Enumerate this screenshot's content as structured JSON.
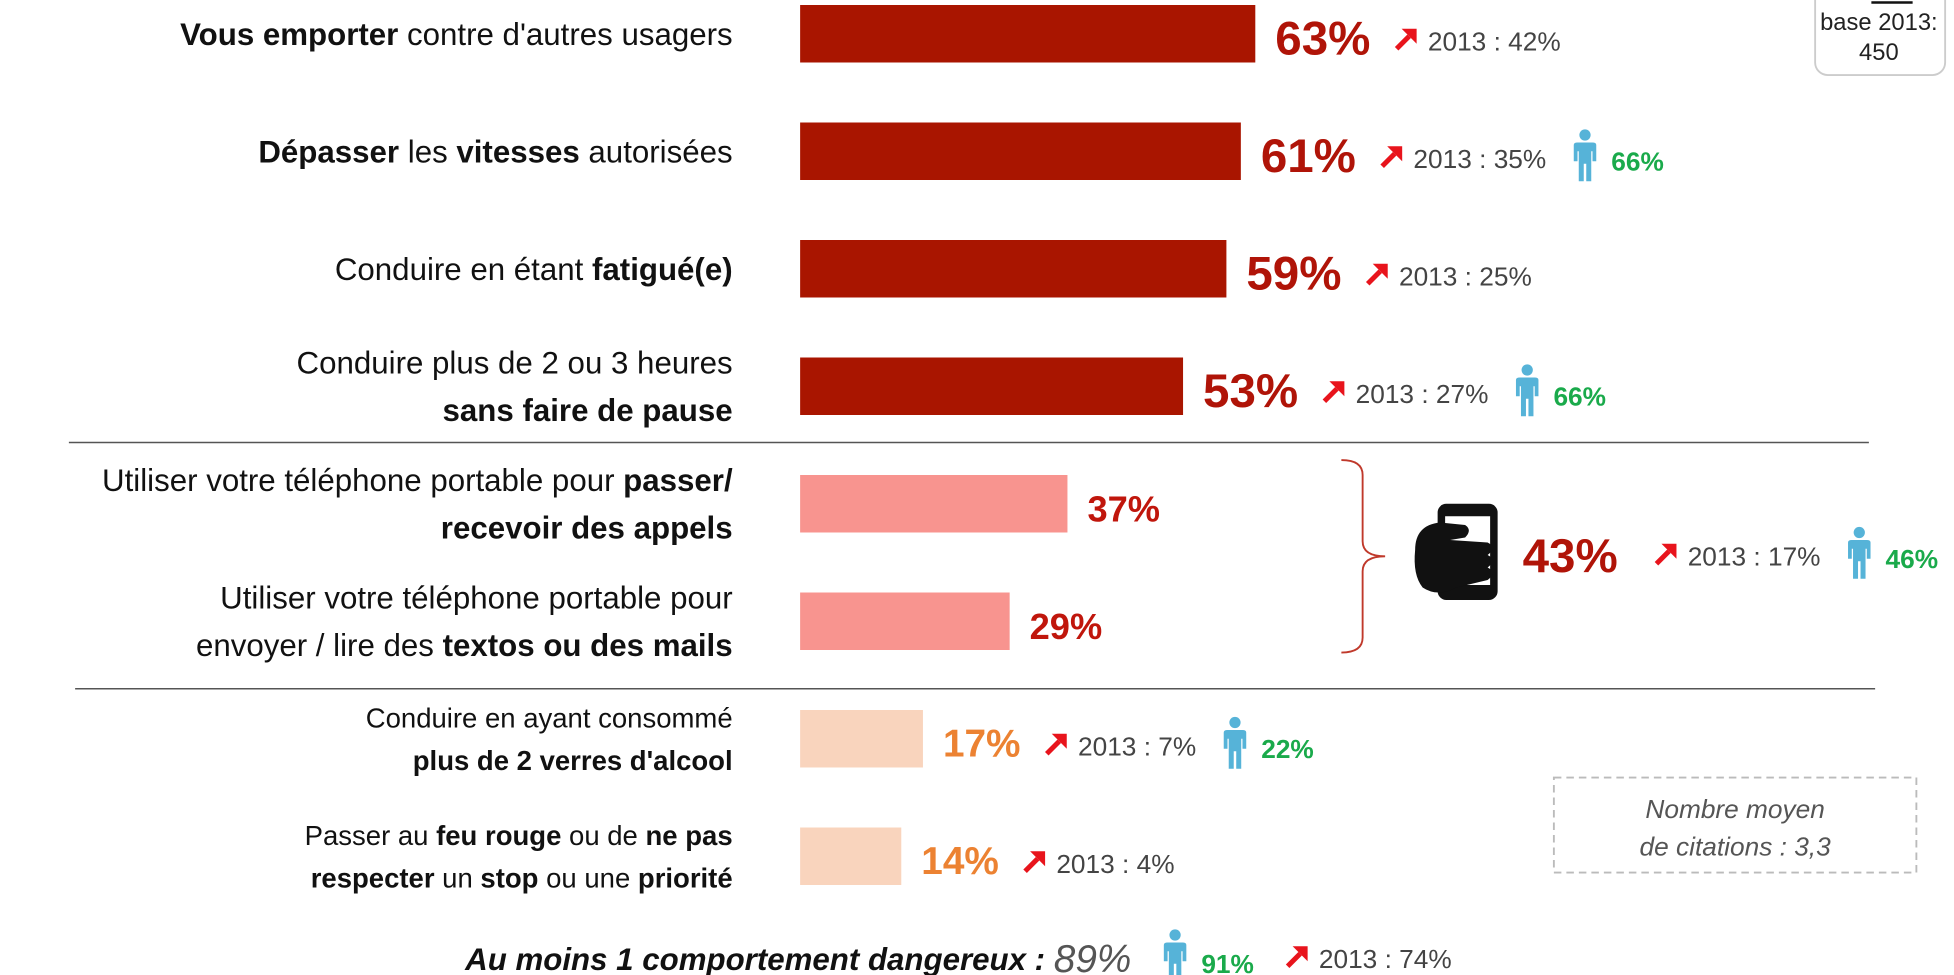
{
  "chart_data": {
    "type": "bar",
    "orientation": "horizontal",
    "xlim": [
      0,
      100
    ],
    "categories": [
      [
        [
          {
            "text": "Vous emporter",
            "bold": true
          },
          {
            "text": " contre d'autres usagers",
            "bold": false
          }
        ]
      ],
      [
        [
          {
            "text": "Dépasser",
            "bold": true
          },
          {
            "text": " les ",
            "bold": false
          },
          {
            "text": "vitesses",
            "bold": true
          },
          {
            "text": " autorisées",
            "bold": false
          }
        ]
      ],
      [
        [
          {
            "text": "Conduire en étant ",
            "bold": false
          },
          {
            "text": "fatigué(e)",
            "bold": true
          }
        ]
      ],
      [
        [
          {
            "text": "Conduire plus de 2 ou 3 heures",
            "bold": false
          }
        ],
        [
          {
            "text": "sans faire de pause",
            "bold": true
          }
        ]
      ],
      [
        [
          {
            "text": "Utiliser votre téléphone portable pour ",
            "bold": false
          },
          {
            "text": "passer/",
            "bold": true
          }
        ],
        [
          {
            "text": "recevoir des appels",
            "bold": true
          }
        ]
      ],
      [
        [
          {
            "text": "Utiliser votre téléphone portable pour",
            "bold": false
          }
        ],
        [
          {
            "text": "envoyer / lire des ",
            "bold": false
          },
          {
            "text": "textos ou des mails",
            "bold": true
          }
        ]
      ],
      [
        [
          {
            "text": "Conduire en ayant consommé",
            "bold": false
          }
        ],
        [
          {
            "text": "plus de 2 verres d'alcool",
            "bold": true
          }
        ]
      ],
      [
        [
          {
            "text": "Passer au ",
            "bold": false
          },
          {
            "text": "feu rouge",
            "bold": true
          },
          {
            "text": " ou de ",
            "bold": false
          },
          {
            "text": "ne pas",
            "bold": true
          }
        ],
        [
          {
            "text": "respecter",
            "bold": true
          },
          {
            "text": " un ",
            "bold": false
          },
          {
            "text": "stop",
            "bold": true
          },
          {
            "text": " ou une ",
            "bold": false
          },
          {
            "text": "priorité",
            "bold": true
          }
        ]
      ]
    ],
    "values": [
      63,
      61,
      59,
      53,
      37,
      29,
      17,
      14
    ],
    "value_labels": [
      "63%",
      "61%",
      "59%",
      "53%",
      "37%",
      "29%",
      "17%",
      "14%"
    ],
    "colors": [
      "#a91500",
      "#a91500",
      "#a91500",
      "#a91500",
      "#f8948f",
      "#f8948f",
      "#f9d4bd",
      "#f9d4bd"
    ],
    "label_colors": [
      "#b01408",
      "#b01408",
      "#b01408",
      "#b01408",
      "#c0160c",
      "#c0160c",
      "#ec8232",
      "#ec8232"
    ],
    "compare": [
      "2013 : 42%",
      "2013 : 35%",
      "2013 : 25%",
      "2013 : 27%",
      null,
      null,
      "2013 : 7%",
      "2013 : 4%"
    ],
    "men": [
      null,
      "66%",
      null,
      "66%",
      null,
      null,
      "22%",
      null
    ],
    "group": {
      "value_label": "43%",
      "compare": "2013 : 17%",
      "men": "46%"
    },
    "base_box": [
      "base 2013:",
      "450"
    ],
    "note": [
      "Nombre moyen",
      "de citations : 3,3"
    ],
    "total": {
      "text": "Au moins 1 comportement dangereux : ",
      "value": "89%",
      "men": "91%",
      "compare": "2013 : 74%"
    }
  }
}
